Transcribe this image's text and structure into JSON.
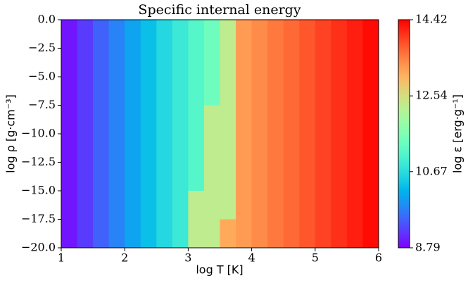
{
  "chart_data": {
    "type": "heatmap",
    "title": "Specific internal energy",
    "x_label": "log T [K]",
    "y_label": "log ρ [g·cm⁻³]",
    "colorbar_label": "log ε [erg·g⁻¹]",
    "colormap": "rainbow",
    "xlim": [
      1,
      6
    ],
    "xticks": [
      1,
      2,
      3,
      4,
      5,
      6
    ],
    "ylim": [
      -20,
      0
    ],
    "yticks": [
      {
        "value": 0,
        "label": "0.0"
      },
      {
        "value": -2.5,
        "label": "−2.5"
      },
      {
        "value": -5,
        "label": "−5.0"
      },
      {
        "value": -7.5,
        "label": "−7.5"
      },
      {
        "value": -10,
        "label": "−10.0"
      },
      {
        "value": -12.5,
        "label": "−12.5"
      },
      {
        "value": -15,
        "label": "−15.0"
      },
      {
        "value": -17.5,
        "label": "−17.5"
      },
      {
        "value": -20,
        "label": "−20.0"
      }
    ],
    "clim": [
      8.79,
      14.42
    ],
    "cticks": [
      8.79,
      10.67,
      12.54,
      14.42
    ],
    "x_edges": [
      1,
      1.25,
      1.5,
      1.75,
      2,
      2.25,
      2.5,
      2.75,
      3,
      3.25,
      3.5,
      3.75,
      4,
      4.25,
      4.5,
      4.75,
      5,
      5.25,
      5.5,
      5.75,
      6
    ],
    "y_edges": [
      0,
      -2.5,
      -5,
      -7.5,
      -10,
      -12.5,
      -15,
      -17.5,
      -20
    ],
    "z": [
      [
        8.94,
        9.21,
        9.49,
        9.76,
        10.04,
        10.31,
        10.59,
        10.86,
        11.14,
        11.41,
        12.3,
        13.25,
        13.39,
        13.53,
        13.66,
        13.8,
        13.94,
        14.08,
        14.21,
        14.35
      ],
      [
        8.94,
        9.21,
        9.49,
        9.76,
        10.04,
        10.31,
        10.59,
        10.86,
        11.14,
        11.41,
        12.3,
        13.25,
        13.39,
        13.53,
        13.66,
        13.8,
        13.94,
        14.08,
        14.21,
        14.35
      ],
      [
        8.94,
        9.21,
        9.49,
        9.76,
        10.04,
        10.31,
        10.59,
        10.86,
        11.14,
        11.41,
        12.3,
        13.25,
        13.39,
        13.53,
        13.66,
        13.8,
        13.94,
        14.08,
        14.21,
        14.35
      ],
      [
        8.94,
        9.21,
        9.49,
        9.76,
        10.04,
        10.31,
        10.59,
        10.86,
        11.14,
        12.3,
        12.3,
        13.25,
        13.39,
        13.53,
        13.66,
        13.8,
        13.94,
        14.08,
        14.21,
        14.35
      ],
      [
        8.94,
        9.21,
        9.49,
        9.76,
        10.04,
        10.31,
        10.59,
        10.86,
        11.14,
        12.3,
        12.3,
        13.25,
        13.39,
        13.53,
        13.66,
        13.8,
        13.94,
        14.08,
        14.21,
        14.35
      ],
      [
        8.94,
        9.21,
        9.49,
        9.76,
        10.04,
        10.31,
        10.59,
        10.86,
        11.14,
        12.3,
        12.3,
        13.25,
        13.39,
        13.53,
        13.66,
        13.8,
        13.94,
        14.08,
        14.21,
        14.35
      ],
      [
        8.94,
        9.21,
        9.49,
        9.76,
        10.04,
        10.31,
        10.59,
        10.86,
        12.3,
        12.3,
        12.3,
        13.25,
        13.39,
        13.53,
        13.66,
        13.8,
        13.94,
        14.08,
        14.21,
        14.35
      ],
      [
        8.94,
        9.21,
        9.49,
        9.76,
        10.04,
        10.31,
        10.59,
        10.86,
        12.3,
        12.3,
        13.11,
        13.25,
        13.39,
        13.53,
        13.66,
        13.8,
        13.94,
        14.08,
        14.21,
        14.35
      ]
    ]
  }
}
